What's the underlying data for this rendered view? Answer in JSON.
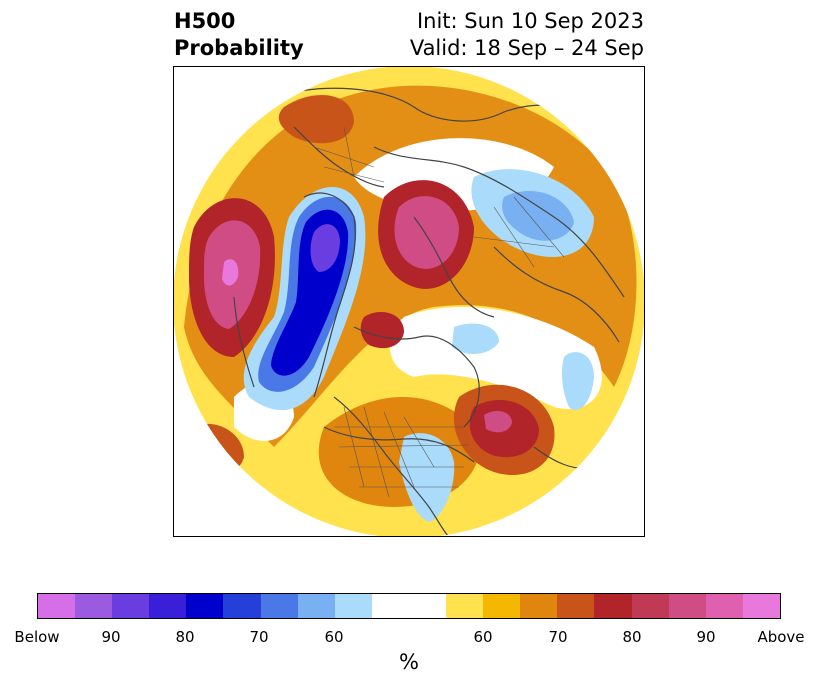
{
  "title": {
    "left_line1": "H500",
    "left_line2": "Probability",
    "right_line1": "Init: Sun 10 Sep 2023",
    "right_line2": "Valid: 18 Sep – 24 Sep"
  },
  "colorbar": {
    "unit": "%",
    "tick_labels": [
      "Below",
      "90",
      "80",
      "70",
      "60",
      "60",
      "70",
      "80",
      "90",
      "Above"
    ],
    "colors": [
      "#d66ee8",
      "#9a5be0",
      "#6a3de0",
      "#3a1fd9",
      "#0000cc",
      "#2440d8",
      "#4a78e6",
      "#78b0f2",
      "#aadbfb",
      "#ffffff",
      "#ffffff",
      "#ffe24d",
      "#f5b800",
      "#e0860f",
      "#c8541a",
      "#b0242a",
      "#c03a55",
      "#cf4c84",
      "#e060b0",
      "#e878dc"
    ]
  },
  "map": {
    "description_icon": "north-polar-map-icon"
  }
}
